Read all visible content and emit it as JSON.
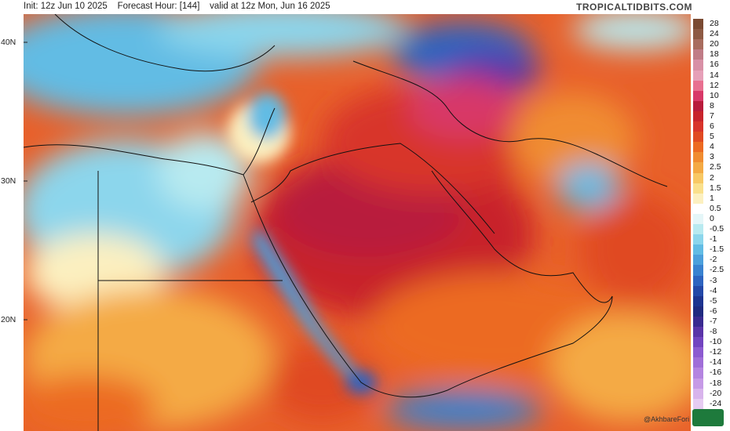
{
  "header": {
    "init": "Init: 12z Jun 10 2025",
    "forecast_hour": "Forecast Hour: [144]",
    "valid": "valid at 12z Mon, Jun 16 2025",
    "brand": "TROPICALTIDBITS.COM"
  },
  "latitudes": [
    "40N",
    "30N",
    "20N"
  ],
  "colorbar": {
    "labels": [
      "28",
      "24",
      "20",
      "18",
      "16",
      "14",
      "12",
      "10",
      "8",
      "7",
      "6",
      "5",
      "4",
      "3",
      "2.5",
      "2",
      "1.5",
      "1",
      "0.5",
      "0",
      "-0.5",
      "-1",
      "-1.5",
      "-2",
      "-2.5",
      "-3",
      "-4",
      "-5",
      "-6",
      "-7",
      "-8",
      "-10",
      "-12",
      "-14",
      "-16",
      "-18",
      "-20",
      "-24"
    ],
    "colors": [
      "#7a4a32",
      "#8e5a44",
      "#a86c5e",
      "#c07c86",
      "#d890a6",
      "#e6a0b8",
      "#e87090",
      "#d83868",
      "#b81c3c",
      "#c8242c",
      "#d8342a",
      "#e04a22",
      "#ec6a22",
      "#f08c30",
      "#f4aa44",
      "#f8c864",
      "#fae08c",
      "#fcf0c0",
      "#ffffff",
      "#e4f6f8",
      "#b8eaf0",
      "#8cd6ec",
      "#62bce4",
      "#4ca0dc",
      "#3a82d0",
      "#2e64c0",
      "#2448a8",
      "#1e3490",
      "#202a80",
      "#3a2a90",
      "#5a34a8",
      "#7244c0",
      "#8c5ad0",
      "#a06ed8",
      "#b484e0",
      "#c69ae6",
      "#d8b4ec",
      "#e6ccf2"
    ]
  },
  "credit": "@AkhbareFori"
}
